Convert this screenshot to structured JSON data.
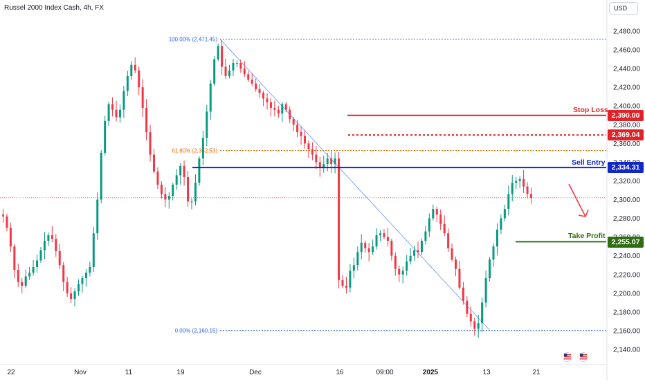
{
  "header": {
    "title": "Russel 2000 Index Cash, 4h, FX",
    "currency_button": "USD"
  },
  "price_axis": {
    "ticks": [
      "2,480.00",
      "2,460.00",
      "2,440.00",
      "2,420.00",
      "2,400.00",
      "2,380.00",
      "2,360.00",
      "2,340.00",
      "2,320.00",
      "2,300.00",
      "2,280.00",
      "2,260.00",
      "2,240.00",
      "2,220.00",
      "2,200.00",
      "2,180.00",
      "2,160.00",
      "2,140.00"
    ]
  },
  "time_axis": {
    "labels": [
      "22",
      "Nov",
      "11",
      "19",
      "Dec",
      "16",
      "09:00",
      "2025",
      "13",
      "21"
    ]
  },
  "fibonacci": {
    "level_100": "100.00% (2,471.45)",
    "level_618": "61.80% (2,352.53)",
    "level_0": "0.00% (2,160.15)"
  },
  "levels": {
    "stop_loss": {
      "label": "Stop Loss",
      "price": "2,390.00",
      "color": "#e32227"
    },
    "intermediate": {
      "price": "2,369.04",
      "color": "#e32227"
    },
    "sell_entry": {
      "label": "Sell Entry",
      "price": "2,334.31",
      "color": "#1027c9"
    },
    "take_profit": {
      "label": "Take Profit",
      "price": "2,255.07",
      "color": "#2e6d12"
    }
  },
  "icons": {
    "flags": [
      "us-flag-icon",
      "us-flag-icon"
    ],
    "arrow": "arrow-down-icon"
  },
  "chart_data": {
    "type": "candlestick",
    "title": "Russel 2000 Index Cash, 4h, FX",
    "ylim": [
      2130,
      2500
    ],
    "x_labels": [
      "22",
      "Nov",
      "11",
      "19",
      "Dec",
      "16",
      "09:00",
      "2025",
      "13",
      "21"
    ],
    "close_path": [
      2282,
      2270,
      2250,
      2225,
      2212,
      2208,
      2218,
      2222,
      2228,
      2235,
      2246,
      2256,
      2262,
      2258,
      2245,
      2230,
      2212,
      2200,
      2194,
      2202,
      2210,
      2216,
      2222,
      2228,
      2264,
      2300,
      2350,
      2384,
      2402,
      2396,
      2388,
      2396,
      2416,
      2432,
      2444,
      2438,
      2420,
      2398,
      2372,
      2348,
      2330,
      2316,
      2306,
      2300,
      2304,
      2316,
      2326,
      2336,
      2324,
      2298,
      2298,
      2318,
      2344,
      2366,
      2394,
      2424,
      2450,
      2464,
      2442,
      2432,
      2438,
      2446,
      2446,
      2440,
      2434,
      2428,
      2424,
      2418,
      2414,
      2408,
      2404,
      2398,
      2396,
      2392,
      2402,
      2396,
      2386,
      2380,
      2372,
      2368,
      2360,
      2354,
      2348,
      2340,
      2334,
      2338,
      2344,
      2338,
      2344,
      2214,
      2208,
      2206,
      2224,
      2230,
      2244,
      2254,
      2248,
      2244,
      2250,
      2262,
      2264,
      2260,
      2256,
      2240,
      2226,
      2220,
      2224,
      2234,
      2240,
      2246,
      2244,
      2256,
      2266,
      2280,
      2290,
      2284,
      2274,
      2264,
      2248,
      2236,
      2226,
      2206,
      2192,
      2178,
      2170,
      2162,
      2168,
      2190,
      2216,
      2236,
      2250,
      2268,
      2280,
      2290,
      2306,
      2318,
      2320,
      2322,
      2314,
      2306,
      2302
    ],
    "fib_high": 2471.45,
    "fib_618": 2352.53,
    "fib_low": 2160.15,
    "stop_loss": 2390.0,
    "intermediate_level": 2369.04,
    "sell_entry": 2334.31,
    "take_profit": 2255.07,
    "current_price": 2302.0,
    "colors": {
      "up": "#089981",
      "down": "#f23645",
      "fib": "#2962ff",
      "fib618": "#ef6c00"
    }
  }
}
